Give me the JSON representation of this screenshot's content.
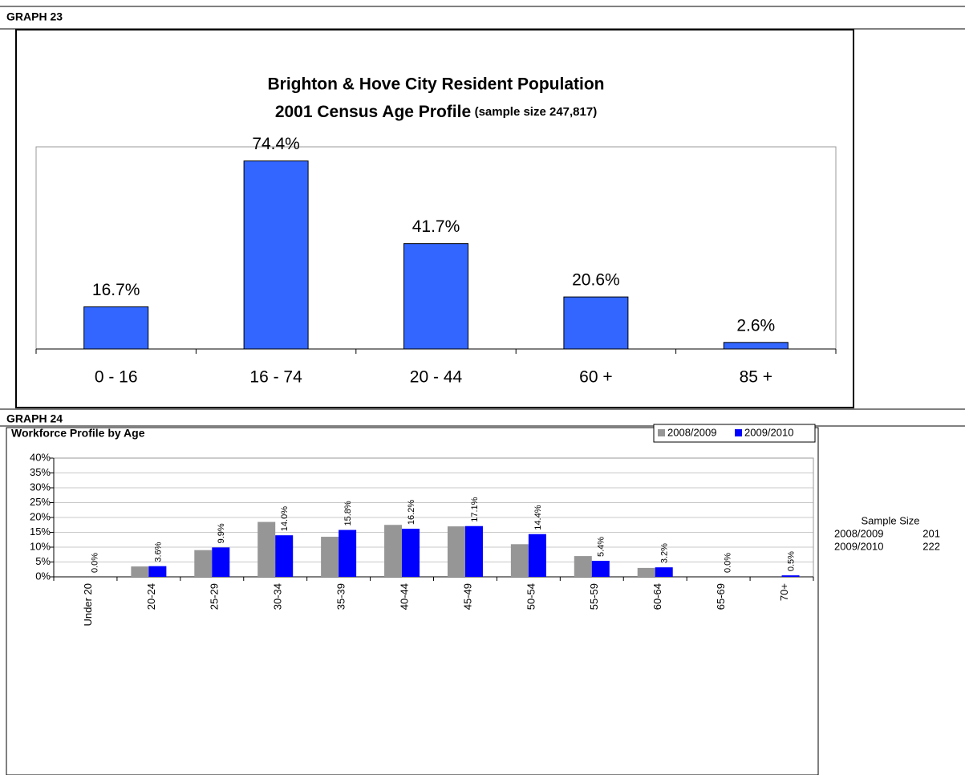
{
  "chart_data": [
    {
      "type": "bar",
      "heading": "GRAPH 23",
      "title": [
        "Brighton & Hove City Resident Population",
        "2001 Census  Age Profile"
      ],
      "subtitle": "(sample size 247,817)",
      "categories": [
        "0 - 16",
        "16 - 74",
        "20 - 44",
        "60 +",
        "85 +"
      ],
      "values": [
        16.7,
        74.4,
        41.7,
        20.6,
        2.6
      ],
      "value_labels": [
        "16.7%",
        "74.4%",
        "41.7%",
        "20.6%",
        "2.6%"
      ],
      "color": "#3366ff",
      "ylim": [
        0,
        80
      ],
      "grid": false
    },
    {
      "type": "grouped_bar",
      "heading": "GRAPH 24",
      "title": "Workforce Profile by Age",
      "categories": [
        "Under 20",
        "20-24",
        "25-29",
        "30-34",
        "35-39",
        "40-44",
        "45-49",
        "50-54",
        "55-59",
        "60-64",
        "65-69",
        "70+"
      ],
      "series": [
        {
          "name": "2008/2009",
          "color": "#969696",
          "values": [
            0,
            3.5,
            9,
            18.5,
            13.5,
            17.5,
            17,
            11,
            7,
            3,
            0,
            0
          ]
        },
        {
          "name": "2009/2010",
          "color": "#0000ff",
          "values": [
            0,
            3.6,
            9.9,
            14.0,
            15.8,
            16.2,
            17.1,
            14.4,
            5.4,
            3.2,
            0.0,
            0.5
          ],
          "value_labels": [
            "0.0%",
            "3.6%",
            "9.9%",
            "14.0%",
            "15.8%",
            "16.2%",
            "17.1%",
            "14.4%",
            "5.4%",
            "3.2%",
            "0.0%",
            "0.5%"
          ]
        }
      ],
      "ylim": [
        0,
        40
      ],
      "yticks": [
        {
          "value": 0,
          "label": "0%"
        },
        {
          "value": 5,
          "label": "5%"
        },
        {
          "value": 10,
          "label": "10%"
        },
        {
          "value": 15,
          "label": "15%"
        },
        {
          "value": 20,
          "label": "20%"
        },
        {
          "value": 25,
          "label": "25%"
        },
        {
          "value": 30,
          "label": "30%"
        },
        {
          "value": 35,
          "label": "35%"
        },
        {
          "value": 40,
          "label": "40%"
        }
      ],
      "grid": true,
      "legend": "top-right"
    }
  ],
  "sample_size": {
    "title": "Sample Size",
    "rows": [
      [
        "2008/2009",
        201
      ],
      [
        "2009/2010",
        222
      ]
    ]
  }
}
